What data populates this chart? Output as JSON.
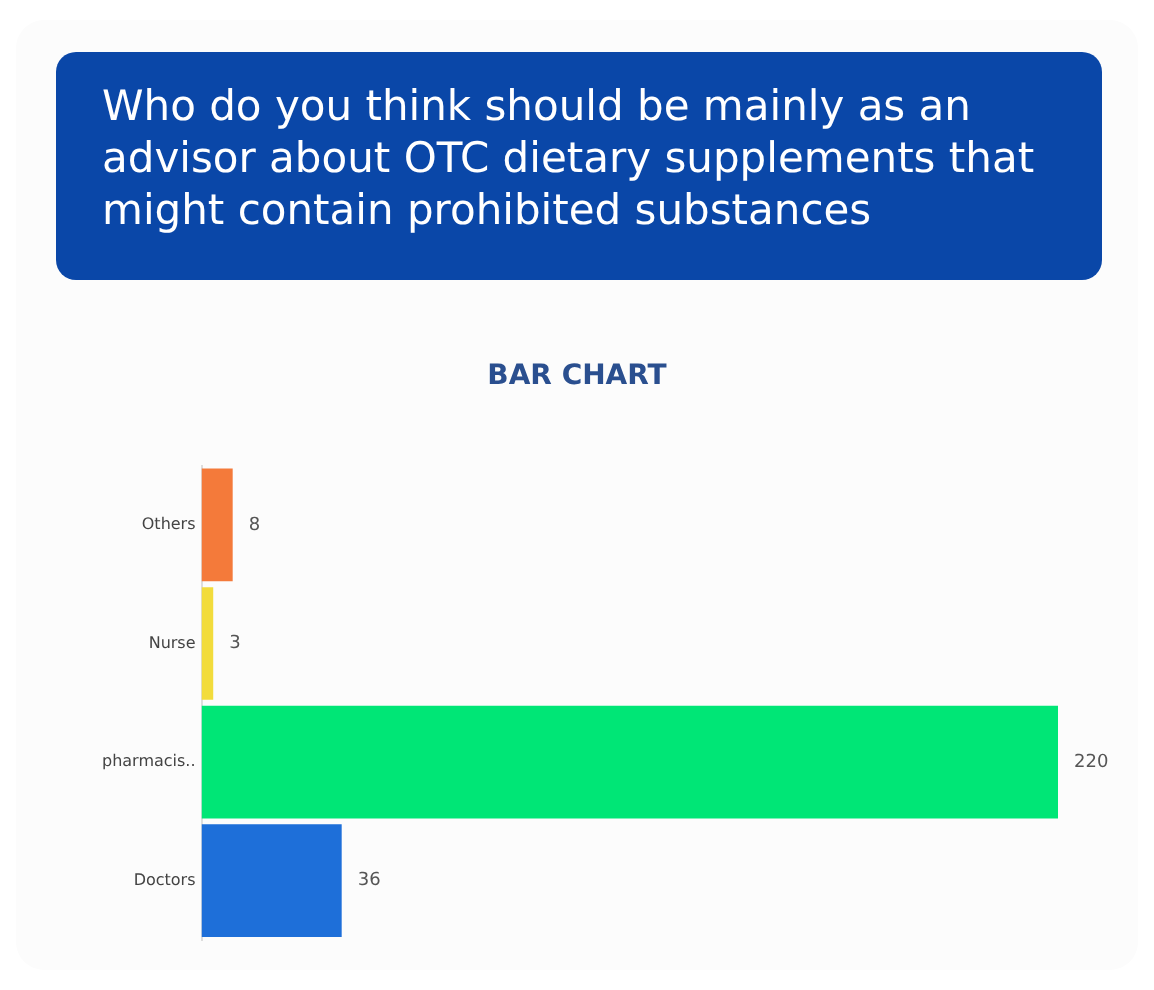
{
  "chart_data": {
    "type": "bar",
    "orientation": "horizontal",
    "title": "Who do you think should be mainly as an advisor about OTC dietary supplements that might contain prohibited substances",
    "subtitle": "BAR CHART",
    "categories": [
      "Others",
      "Nurse",
      "pharmacis..",
      "Doctors"
    ],
    "values": [
      8,
      3,
      220,
      36
    ],
    "colors": [
      "#f47a3a",
      "#f2dc3c",
      "#00e676",
      "#1e6fd9"
    ],
    "data_labels": true,
    "xlim": [
      0,
      220
    ],
    "tick_labels": "y",
    "grid": false,
    "legend": false
  }
}
